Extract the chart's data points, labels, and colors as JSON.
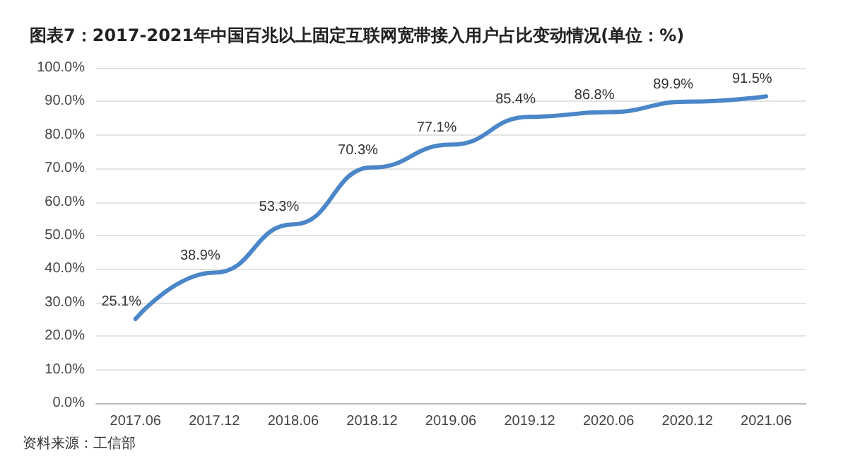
{
  "chart_data": {
    "type": "line",
    "title": "图表7：2017-2021年中国百兆以上固定互联网宽带接入用户占比变动情况(单位：%)",
    "categories": [
      "2017.06",
      "2017.12",
      "2018.06",
      "2018.12",
      "2019.06",
      "2019.12",
      "2020.06",
      "2020.12",
      "2021.06"
    ],
    "series": [
      {
        "color": "#4a86c8",
        "values": [
          25.1,
          38.9,
          53.3,
          70.3,
          77.1,
          85.4,
          86.8,
          89.9,
          91.5
        ],
        "value_labels": [
          "25.1%",
          "38.9%",
          "53.3%",
          "70.3%",
          "77.1%",
          "85.4%",
          "86.8%",
          "89.9%",
          "91.5%"
        ]
      }
    ],
    "ylim": [
      0,
      100
    ],
    "yticks": [
      {
        "value": 0,
        "label": "0.0%"
      },
      {
        "value": 10,
        "label": "10.0%"
      },
      {
        "value": 20,
        "label": "20.0%"
      },
      {
        "value": 30,
        "label": "30.0%"
      },
      {
        "value": 40,
        "label": "40.0%"
      },
      {
        "value": 50,
        "label": "50.0%"
      },
      {
        "value": 60,
        "label": "60.0%"
      },
      {
        "value": 70,
        "label": "70.0%"
      },
      {
        "value": 80,
        "label": "80.0%"
      },
      {
        "value": 90,
        "label": "90.0%"
      },
      {
        "value": 100,
        "label": "100.0%"
      }
    ],
    "grid": "y",
    "marker": "none",
    "line_style": "solid",
    "annotations": [
      "资料来源：工信部"
    ]
  }
}
